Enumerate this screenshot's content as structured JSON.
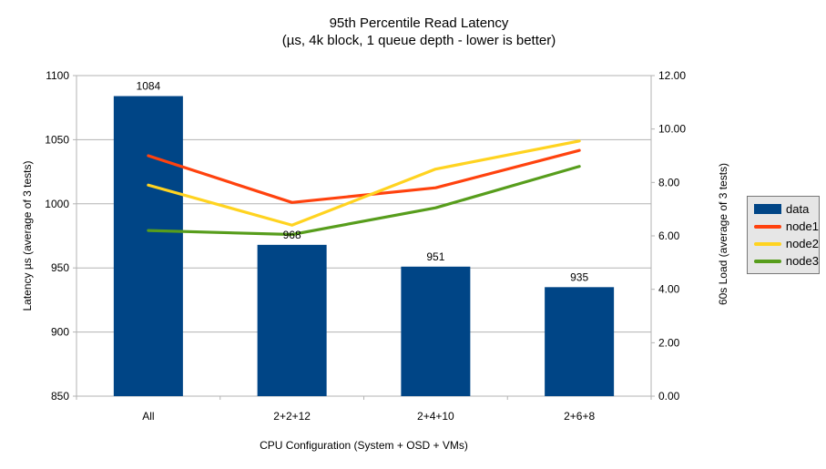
{
  "chart_data": {
    "type": "combo-bar-line",
    "title": "95th Percentile Read Latency",
    "subtitle": "(µs, 4k block, 1 queue depth - lower is better)",
    "categories": [
      "All",
      "2+2+12",
      "2+4+10",
      "2+6+8"
    ],
    "xlabel": "CPU Configuration (System + OSD + VMs)",
    "left_axis": {
      "label": "Latency µs (average of 3 tests)",
      "min": 850,
      "max": 1100,
      "step": 50,
      "ticks": [
        "850",
        "900",
        "950",
        "1000",
        "1050",
        "1100"
      ]
    },
    "right_axis": {
      "label": "60s Load (average of 3 tests)",
      "min": 0,
      "max": 12,
      "step": 2,
      "ticks": [
        "0.00",
        "2.00",
        "4.00",
        "6.00",
        "8.00",
        "10.00",
        "12.00"
      ]
    },
    "bar_series": {
      "name": "data",
      "axis": "left",
      "color": "#004586",
      "values": [
        1084,
        968,
        951,
        935
      ],
      "labels": [
        "1084",
        "968",
        "951",
        "935"
      ]
    },
    "line_series": [
      {
        "name": "node1",
        "axis": "right",
        "color": "#ff420e",
        "values": [
          9.0,
          7.25,
          7.8,
          9.2
        ]
      },
      {
        "name": "node2",
        "axis": "right",
        "color": "#ffd320",
        "values": [
          7.9,
          6.4,
          8.5,
          9.55
        ]
      },
      {
        "name": "node3",
        "axis": "right",
        "color": "#579d1c",
        "values": [
          6.2,
          6.05,
          7.05,
          8.6
        ]
      }
    ],
    "legend": {
      "position": "right",
      "items": [
        {
          "label": "data",
          "color": "#004586",
          "swatch": "bar"
        },
        {
          "label": "node1",
          "color": "#ff420e",
          "swatch": "line"
        },
        {
          "label": "node2",
          "color": "#ffd320",
          "swatch": "line"
        },
        {
          "label": "node3",
          "color": "#579d1c",
          "swatch": "line"
        }
      ]
    },
    "grid": "horizontal",
    "colors": {
      "grid": "#b3b3b3",
      "axis": "#b3b3b3",
      "text": "#000000",
      "background": "#ffffff",
      "legend_background": "#e6e6e6",
      "legend_border": "#787878"
    }
  }
}
